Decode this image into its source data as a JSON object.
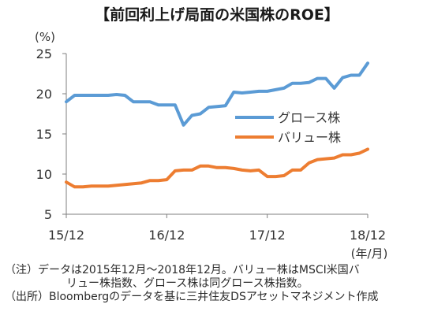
{
  "title": "【前回利上げ局面の米国株のROE】",
  "notes": {
    "note_line1": "（注）データは2015年12月～2018年12月。バリュー株はMSCI米国バ",
    "note_line2": "リュー株指数、グロース株は同グロース株指数。",
    "source": "（出所）Bloombergのデータを基に三井住友DSアセットマネジメント作成"
  },
  "chart_data": {
    "type": "line",
    "y_unit_label": "(%)",
    "x_unit_label": "(年/月)",
    "ylim": [
      5,
      25
    ],
    "yticks": [
      "5",
      "10",
      "15",
      "20",
      "25"
    ],
    "xticks": [
      "15/12",
      "16/12",
      "17/12",
      "18/12"
    ],
    "x_start": "2015-12",
    "x_end": "2018-12",
    "grid": false,
    "legend_position": "center-right",
    "series": [
      {
        "name": "グロース株",
        "color": "#5b9bd5",
        "values": [
          19.0,
          19.8,
          19.8,
          19.8,
          19.8,
          19.8,
          19.9,
          19.8,
          19.0,
          19.0,
          19.0,
          18.6,
          18.6,
          18.6,
          16.1,
          17.3,
          17.5,
          18.3,
          18.4,
          18.5,
          20.2,
          20.1,
          20.2,
          20.3,
          20.3,
          20.5,
          20.7,
          21.3,
          21.3,
          21.4,
          21.9,
          21.9,
          20.7,
          22.0,
          22.3,
          22.3,
          23.8
        ]
      },
      {
        "name": "バリュー株",
        "color": "#ed7d31",
        "values": [
          9.0,
          8.4,
          8.4,
          8.5,
          8.5,
          8.5,
          8.6,
          8.7,
          8.8,
          8.9,
          9.2,
          9.2,
          9.3,
          10.4,
          10.5,
          10.5,
          11.0,
          11.0,
          10.8,
          10.8,
          10.7,
          10.5,
          10.4,
          10.5,
          9.7,
          9.7,
          9.8,
          10.5,
          10.5,
          11.4,
          11.8,
          11.9,
          12.0,
          12.4,
          12.4,
          12.6,
          13.1
        ]
      }
    ]
  }
}
